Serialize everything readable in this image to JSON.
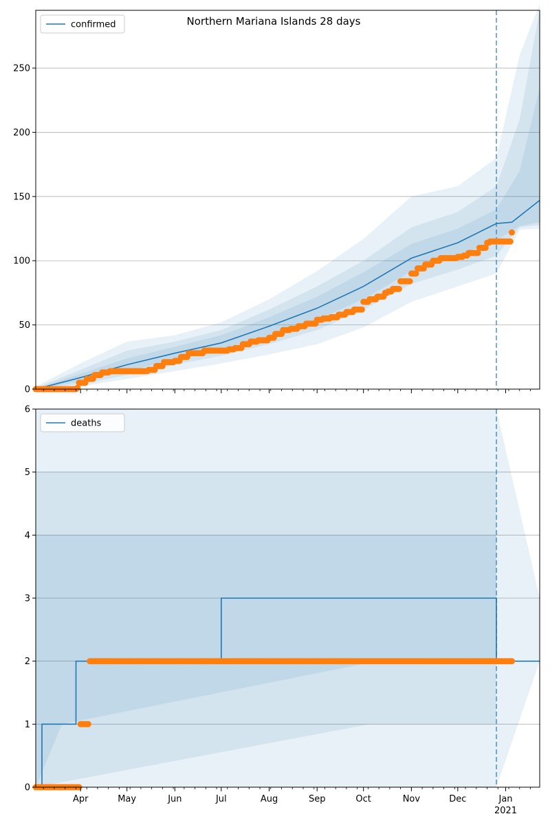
{
  "chart_data": [
    {
      "type": "line",
      "title": "Northern Mariana Islands 28 days",
      "xlabel": "",
      "ylabel": "",
      "ylim": [
        0,
        295
      ],
      "yticks": [
        0,
        50,
        100,
        150,
        200,
        250
      ],
      "grid": "y",
      "legend": {
        "position": "top-left",
        "entries": [
          "confirmed"
        ]
      },
      "colors": {
        "model": "#1f77b4",
        "observed": "#ff7f0e",
        "band": "#1f77b4"
      },
      "x_range": [
        "2020-03-03",
        "2021-01-23"
      ],
      "forecast_start": "2020-12-26",
      "series": [
        {
          "name": "confirmed",
          "kind": "model",
          "x": [
            "2020-03-03",
            "2020-04-01",
            "2020-05-01",
            "2020-06-01",
            "2020-07-01",
            "2020-08-01",
            "2020-09-01",
            "2020-10-01",
            "2020-11-01",
            "2020-12-01",
            "2020-12-26",
            "2021-01-05",
            "2021-01-23"
          ],
          "values": [
            0,
            9,
            19,
            28,
            36,
            49,
            63,
            80,
            102,
            114,
            129,
            130,
            147
          ]
        },
        {
          "name": "",
          "kind": "observed",
          "x": [
            "2020-03-03",
            "2020-03-30",
            "2020-03-31",
            "2020-04-05",
            "2020-04-10",
            "2020-04-15",
            "2020-04-20",
            "2020-05-15",
            "2020-05-20",
            "2020-05-25",
            "2020-06-01",
            "2020-06-05",
            "2020-06-10",
            "2020-06-20",
            "2020-07-01",
            "2020-07-06",
            "2020-07-10",
            "2020-07-15",
            "2020-07-20",
            "2020-07-25",
            "2020-08-01",
            "2020-08-05",
            "2020-08-10",
            "2020-08-15",
            "2020-08-20",
            "2020-08-25",
            "2020-09-01",
            "2020-09-05",
            "2020-09-10",
            "2020-09-15",
            "2020-09-20",
            "2020-09-25",
            "2020-10-01",
            "2020-10-05",
            "2020-10-10",
            "2020-10-15",
            "2020-10-17",
            "2020-10-20",
            "2020-10-25",
            "2020-11-01",
            "2020-11-05",
            "2020-11-10",
            "2020-11-15",
            "2020-11-20",
            "2020-12-01",
            "2020-12-05",
            "2020-12-08",
            "2020-12-15",
            "2020-12-20",
            "2020-12-22",
            "2021-01-05"
          ],
          "values": [
            0,
            1,
            5,
            8,
            11,
            13,
            14,
            15,
            18,
            21,
            22,
            25,
            28,
            30,
            30,
            31,
            32,
            35,
            37,
            38,
            40,
            43,
            46,
            47,
            49,
            51,
            54,
            55,
            56,
            58,
            60,
            62,
            68,
            70,
            72,
            75,
            76,
            78,
            84,
            90,
            94,
            97,
            100,
            102,
            103,
            104,
            106,
            110,
            114,
            115,
            122
          ]
        }
      ],
      "bands": [
        {
          "x": [
            "2020-03-03",
            "2020-04-01",
            "2020-05-01",
            "2020-06-01",
            "2020-07-01",
            "2020-08-01",
            "2020-09-01",
            "2020-10-01",
            "2020-11-01",
            "2020-12-01",
            "2020-12-26",
            "2021-01-10",
            "2021-01-23"
          ],
          "lower": [
            0,
            2,
            8,
            14,
            20,
            27,
            35,
            48,
            68,
            80,
            90,
            124,
            125
          ],
          "upper": [
            2,
            20,
            37,
            42,
            52,
            70,
            92,
            117,
            150,
            158,
            180,
            260,
            300
          ]
        },
        {
          "x": [
            "2020-03-03",
            "2020-04-01",
            "2020-05-01",
            "2020-06-01",
            "2020-07-01",
            "2020-08-01",
            "2020-09-01",
            "2020-10-01",
            "2020-11-01",
            "2020-12-01",
            "2020-12-26",
            "2021-01-10",
            "2021-01-23"
          ],
          "lower": [
            0,
            4,
            11,
            19,
            26,
            35,
            46,
            62,
            82,
            93,
            104,
            126,
            128
          ],
          "upper": [
            1,
            15,
            30,
            37,
            46,
            62,
            80,
            100,
            126,
            138,
            158,
            210,
            295
          ]
        },
        {
          "x": [
            "2020-03-03",
            "2020-04-01",
            "2020-05-01",
            "2020-06-01",
            "2020-07-01",
            "2020-08-01",
            "2020-09-01",
            "2020-10-01",
            "2020-11-01",
            "2020-12-01",
            "2020-12-26",
            "2021-01-10",
            "2021-01-23"
          ],
          "lower": [
            0,
            6,
            14,
            23,
            30,
            41,
            54,
            70,
            92,
            104,
            116,
            127,
            130
          ],
          "upper": [
            0.5,
            12,
            24,
            33,
            42,
            56,
            72,
            91,
            113,
            125,
            140,
            170,
            235
          ]
        }
      ],
      "x_tick_labels": []
    },
    {
      "type": "line",
      "title": "",
      "xlabel": "",
      "ylabel": "",
      "ylim": [
        0,
        6
      ],
      "yticks": [
        0,
        1,
        2,
        3,
        4,
        5,
        6
      ],
      "grid": "y",
      "legend": {
        "position": "top-left",
        "entries": [
          "deaths"
        ]
      },
      "colors": {
        "model": "#1f77b4",
        "observed": "#ff7f0e",
        "band": "#1f77b4"
      },
      "x_range": [
        "2020-03-03",
        "2021-01-23"
      ],
      "forecast_start": "2020-12-26",
      "series": [
        {
          "name": "deaths",
          "kind": "model",
          "step": true,
          "x": [
            "2020-03-03",
            "2020-03-07",
            "2020-03-29",
            "2020-07-01",
            "2020-12-26",
            "2021-01-23"
          ],
          "values": [
            0,
            1,
            2,
            3,
            2,
            2
          ]
        },
        {
          "name": "",
          "kind": "observed",
          "step": true,
          "x": [
            "2020-03-03",
            "2020-04-01",
            "2020-04-07",
            "2021-01-05"
          ],
          "values": [
            0,
            1,
            2,
            2
          ]
        }
      ],
      "bands": [
        {
          "x": [
            "2020-03-03",
            "2020-07-22",
            "2020-12-26",
            "2021-01-23"
          ],
          "lower": [
            0,
            0,
            0,
            2
          ],
          "upper": [
            6,
            6,
            6,
            3
          ]
        },
        {
          "x": [
            "2020-03-03",
            "2020-10-05",
            "2020-12-26"
          ],
          "lower": [
            0,
            1,
            1
          ],
          "upper": [
            5,
            5,
            5
          ]
        },
        {
          "x": [
            "2020-03-03",
            "2020-03-20",
            "2020-10-10",
            "2020-12-26"
          ],
          "lower": [
            0,
            1,
            2,
            2
          ],
          "upper": [
            4,
            4,
            4,
            4
          ]
        }
      ],
      "x_tick_labels": [
        "Apr",
        "May",
        "Jun",
        "Jul",
        "Aug",
        "Sep",
        "Oct",
        "Nov",
        "Dec",
        "Jan",
        "2021"
      ]
    }
  ]
}
